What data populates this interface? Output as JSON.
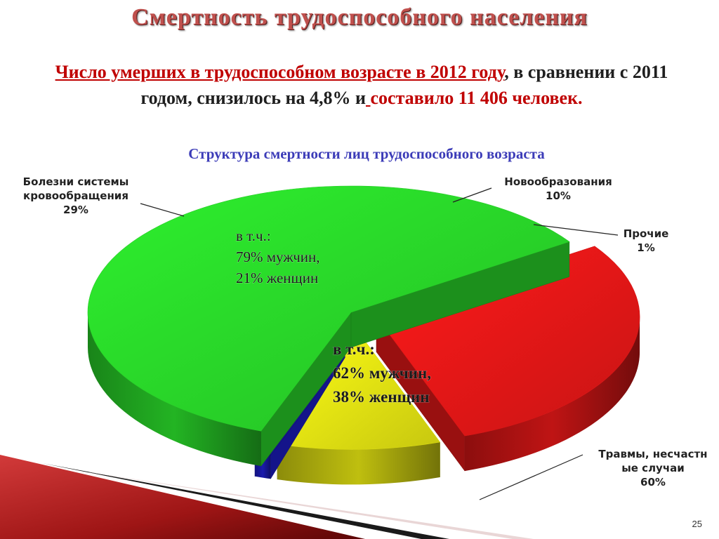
{
  "slide": {
    "title": "Смертность трудоспособного населения",
    "headline": {
      "part1": "Число умерших в трудоспособном возрасте в 2012 году",
      "part2": ", в сравнении с 2011 годом, снизилось на 4,8% и",
      "part3": " ",
      "part4": "составило 11 406 человек."
    },
    "subtitle": "Структура смертности лиц трудоспособного возраста",
    "page_number": "25"
  },
  "chart_data": {
    "type": "pie",
    "style": "3d exploded pie",
    "slices": [
      {
        "label_lines": [
          "Травмы, несчастн",
          "ые случаи",
          "60%"
        ],
        "value": 60,
        "color": "#2ef02e"
      },
      {
        "label_lines": [
          "Болезни системы",
          "кровообращения",
          "29%"
        ],
        "value": 29,
        "color": "#ff1a1a"
      },
      {
        "label_lines": [
          "Новообразования",
          "10%"
        ],
        "value": 10,
        "color": "#ffff14"
      },
      {
        "label_lines": [
          "Прочие",
          "1%"
        ],
        "value": 1,
        "color": "#2222e6"
      }
    ],
    "callouts": [
      {
        "slice": 1,
        "lines": [
          "в т.ч.:",
          "62% мужчин,",
          "38% женщин"
        ]
      },
      {
        "slice": 0,
        "lines": [
          "в т.ч.:",
          "79% мужчин,",
          "21% женщин"
        ]
      }
    ]
  }
}
